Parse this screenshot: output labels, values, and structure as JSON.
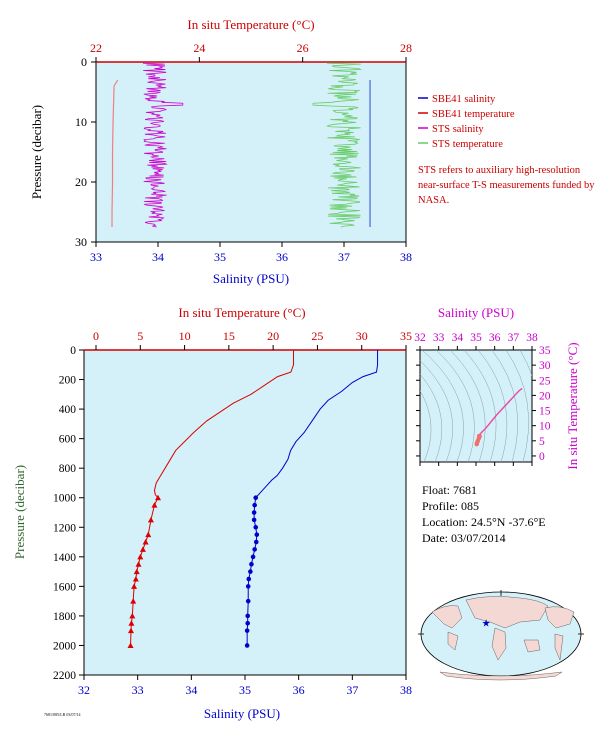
{
  "top": {
    "top_axis_label": "In situ Temperature (°C)",
    "bottom_axis_label": "Salinity (PSU)",
    "left_axis_label": "Pressure (decibar)",
    "temp_ticks": [
      "22",
      "24",
      "26",
      "28"
    ],
    "sal_ticks": [
      "33",
      "34",
      "35",
      "36",
      "37",
      "38"
    ],
    "pres_ticks": [
      "0",
      "10",
      "20",
      "30"
    ],
    "legend": [
      {
        "label": "SBE41 salinity",
        "color": "#0000cc"
      },
      {
        "label": "SBE41 temperature",
        "color": "#cc0000"
      },
      {
        "label": "STS salinity",
        "color": "#cc00cc"
      },
      {
        "label": "STS temperature",
        "color": "#66cc66"
      }
    ],
    "note": "STS refers to auxiliary high-resolution near-surface T-S measurements funded by NASA."
  },
  "main": {
    "top_axis_label": "In situ Temperature (°C)",
    "bottom_axis_label": "Salinity (PSU)",
    "left_axis_label": "Pressure (decibar)",
    "temp_ticks": [
      "0",
      "5",
      "10",
      "15",
      "20",
      "25",
      "30",
      "35"
    ],
    "sal_ticks": [
      "32",
      "33",
      "34",
      "35",
      "36",
      "37",
      "38"
    ],
    "pres_ticks": [
      "0",
      "200",
      "400",
      "600",
      "800",
      "1000",
      "1200",
      "1400",
      "1600",
      "1800",
      "2000",
      "2200"
    ]
  },
  "ts": {
    "top_axis_label": "Salinity (PSU)",
    "right_axis_label": "In situ Temperature (°C)",
    "sal_ticks": [
      "32",
      "33",
      "34",
      "35",
      "36",
      "37",
      "38"
    ],
    "temp_ticks": [
      "0",
      "5",
      "10",
      "15",
      "20",
      "25",
      "30",
      "35"
    ]
  },
  "info": {
    "float": "Float:  7681",
    "profile": "Profile:  085",
    "location": "Location:  24.5°N  -37.6°E",
    "date": "Date:  03/07/2014"
  },
  "footer": "7681/085/LR 03/07/14",
  "chart_data": [
    {
      "type": "line",
      "title": "",
      "xlabel": "Salinity (PSU)",
      "x2label": "In situ Temperature (°C)",
      "ylabel": "Pressure (decibar)",
      "xlim": [
        33,
        38
      ],
      "x2lim": [
        22,
        28
      ],
      "ylim": [
        30,
        0
      ],
      "series": [
        {
          "name": "SBE41 salinity",
          "axis": "salinity",
          "x": [
            37.42,
            37.42,
            37.42,
            37.42,
            37.42,
            37.42,
            37.42
          ],
          "y": [
            3,
            5,
            10,
            15,
            20,
            25,
            27.5
          ]
        },
        {
          "name": "SBE41 temperature",
          "axis": "temperature",
          "x": [
            22.42,
            22.35,
            22.33,
            22.32,
            22.32,
            22.31,
            22.31
          ],
          "y": [
            3,
            4,
            10,
            15,
            20,
            25,
            27.5
          ]
        },
        {
          "name": "STS salinity",
          "axis": "salinity",
          "mean": 33.95,
          "range": [
            33.7,
            34.4
          ],
          "y": [
            0.2,
            27.5
          ]
        },
        {
          "name": "STS temperature",
          "axis": "temperature",
          "mean": 26.8,
          "range": [
            26.2,
            27.4
          ],
          "y": [
            0.2,
            27.5
          ]
        }
      ]
    },
    {
      "type": "line",
      "title": "",
      "xlabel": "Salinity (PSU)",
      "x2label": "In situ Temperature (°C)",
      "ylabel": "Pressure (decibar)",
      "xlim": [
        32,
        38
      ],
      "x2lim": [
        0,
        35
      ],
      "ylim": [
        2200,
        0
      ],
      "series": [
        {
          "name": "Salinity",
          "axis": "salinity",
          "x": [
            37.47,
            37.47,
            37.45,
            37.2,
            37.0,
            36.8,
            36.55,
            36.4,
            36.25,
            36.1,
            35.95,
            35.85,
            35.8,
            35.7,
            35.6,
            35.5,
            35.4,
            35.3,
            35.2,
            35.18,
            35.17,
            35.17,
            35.2,
            35.22,
            35.21,
            35.18,
            35.15,
            35.12,
            35.1,
            35.07,
            35.06,
            35.06,
            35.05,
            35.05,
            35.04,
            35.04
          ],
          "y": [
            0,
            100,
            150,
            180,
            220,
            280,
            340,
            400,
            480,
            560,
            620,
            680,
            740,
            800,
            850,
            880,
            920,
            960,
            1000,
            1050,
            1100,
            1150,
            1200,
            1250,
            1300,
            1350,
            1400,
            1450,
            1500,
            1550,
            1600,
            1700,
            1800,
            1850,
            1900,
            2000
          ]
        },
        {
          "name": "Temperature",
          "axis": "temperature",
          "x": [
            22.3,
            22.3,
            22.0,
            20.5,
            19.0,
            17.5,
            15.5,
            14.0,
            12.5,
            11.0,
            10.0,
            9.0,
            8.4,
            7.8,
            7.2,
            6.8,
            6.6,
            6.7,
            7.0,
            6.6,
            6.2,
            5.9,
            5.6,
            5.3,
            5.0,
            4.8,
            4.6,
            4.5,
            4.3,
            4.2,
            4.1,
            4.0,
            3.95,
            3.9
          ],
          "y": [
            0,
            100,
            150,
            180,
            240,
            300,
            360,
            420,
            480,
            560,
            620,
            680,
            740,
            800,
            860,
            900,
            950,
            980,
            1000,
            1050,
            1150,
            1250,
            1300,
            1350,
            1400,
            1450,
            1500,
            1550,
            1600,
            1700,
            1800,
            1850,
            1900,
            2000
          ]
        }
      ]
    },
    {
      "type": "scatter",
      "title": "",
      "xlabel": "Salinity (PSU)",
      "ylabel": "In situ Temperature (°C)",
      "xlim": [
        32,
        38
      ],
      "ylim": [
        -2,
        35
      ],
      "series": [
        {
          "name": "T-S",
          "x": [
            37.47,
            37.3,
            37.0,
            36.7,
            36.4,
            36.1,
            35.9,
            35.7,
            35.5,
            35.3,
            35.2,
            35.17,
            35.2,
            35.15,
            35.1,
            35.06,
            35.04
          ],
          "y": [
            22.3,
            21.5,
            19.5,
            17.5,
            15.5,
            13.5,
            12.0,
            10.5,
            9.0,
            7.8,
            7.0,
            6.6,
            6.5,
            5.8,
            5.0,
            4.4,
            3.9
          ]
        }
      ]
    },
    {
      "type": "map",
      "title": "",
      "marker": {
        "lat": 24.5,
        "lon": -37.6
      }
    }
  ]
}
